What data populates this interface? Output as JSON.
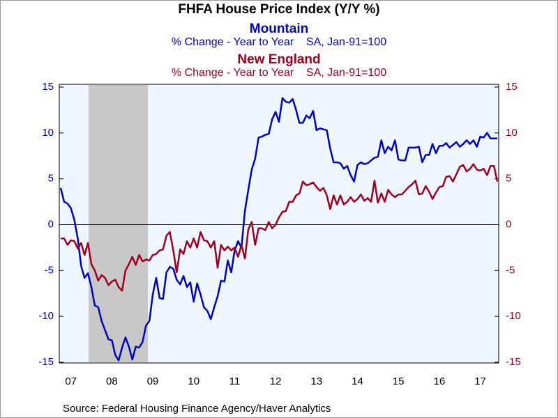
{
  "chart_data": {
    "type": "line",
    "title": "FHFA House Price Index (Y/Y %)",
    "subtitles": [
      {
        "name": "Mountain",
        "text": "% Change - Year to Year    SA, Jan-91=100"
      },
      {
        "name": "New England",
        "text": "% Change - Year to Year    SA, Jan-91=100"
      }
    ],
    "source": "Source:  Federal Housing Finance Agency/Haver Analytics",
    "categories": [
      null,
      null,
      null,
      "07",
      null,
      null,
      null,
      null,
      null,
      null,
      null,
      null,
      null,
      null,
      null,
      "08",
      null,
      null,
      null,
      null,
      null,
      null,
      null,
      null,
      null,
      null,
      null,
      "09",
      null,
      null,
      null,
      null,
      null,
      null,
      null,
      null,
      null,
      null,
      null,
      "10",
      null,
      null,
      null,
      null,
      null,
      null,
      null,
      null,
      null,
      null,
      null,
      "11",
      null,
      null,
      null,
      null,
      null,
      null,
      null,
      null,
      null,
      null,
      null,
      "12",
      null,
      null,
      null,
      null,
      null,
      null,
      null,
      null,
      null,
      null,
      null,
      "13",
      null,
      null,
      null,
      null,
      null,
      null,
      null,
      null,
      null,
      null,
      null,
      "14",
      null,
      null,
      null,
      null,
      null,
      null,
      null,
      null,
      null,
      null,
      null,
      "15",
      null,
      null,
      null,
      null,
      null,
      null,
      null,
      null,
      null,
      null,
      null,
      "16",
      null,
      null,
      null,
      null,
      null,
      null,
      null,
      null,
      null,
      null,
      null,
      "17",
      null,
      null,
      null,
      null,
      null
    ],
    "series": [
      {
        "name": "Mountain",
        "color": "#0000c0",
        "values": [
          4,
          2.5,
          2.3,
          1.8,
          0.5,
          -1.5,
          -4.5,
          -5.8,
          -5.3,
          -6.8,
          -8.8,
          -9,
          -10.5,
          -11.5,
          -12.5,
          -12.6,
          -14.2,
          -14.8,
          -13.4,
          -12.3,
          -13.3,
          -14.7,
          -13.3,
          -13.4,
          -12.8,
          -11,
          -10.5,
          -7.6,
          -5.8,
          -8,
          -8.1,
          -5.2,
          -4.6,
          -4.8,
          -6,
          -6.5,
          -5.6,
          -6.8,
          -6.3,
          -8.4,
          -6.4,
          -7.6,
          -9,
          -9.4,
          -10.3,
          -9,
          -7.8,
          -6.1,
          -6.2,
          -3.9,
          -5.2,
          -2.8,
          -1.8,
          -2.5,
          1.5,
          3.8,
          6,
          7.2,
          9.5,
          9.6,
          9.8,
          9.9,
          11.5,
          12.3,
          11.2,
          13.8,
          13.4,
          13.3,
          13.7,
          12.5,
          11.1,
          11.1,
          11.9,
          11.6,
          12.4,
          10.3,
          10.5,
          10.4,
          10.3,
          8.3,
          6.8,
          6.8,
          6.7,
          6.1,
          6.4,
          5.4,
          4.7,
          6.5,
          6.8,
          6.6,
          6.7,
          7,
          7.3,
          7.4,
          9.2,
          7.8,
          8.5,
          8.1,
          9.2,
          7.1,
          7,
          7,
          8.4,
          8.4,
          8.4,
          8.5,
          6.8,
          7.6,
          7.6,
          8.8,
          7.8,
          8.6,
          8.6,
          8.9,
          8.4,
          8.7,
          9,
          8.5,
          8.8,
          9.2,
          8.8,
          9.2,
          8.5,
          9.6,
          9.5,
          10,
          9.4,
          9.4,
          9.4
        ]
      },
      {
        "name": "New England",
        "color": "#a0001e",
        "axis": "y2",
        "values": [
          -1.5,
          -1.5,
          -2.2,
          -1.7,
          -1.8,
          -2.6,
          -2,
          -3.3,
          -2,
          -4.3,
          -5,
          -6.1,
          -5.5,
          -5.8,
          -6.6,
          -6.2,
          -6,
          -6.8,
          -7.2,
          -5,
          -4.3,
          -3.5,
          -4.4,
          -3.3,
          -4,
          -3.8,
          -3.9,
          -3.3,
          -3.2,
          -2.8,
          -2.7,
          -1.2,
          -0.8,
          -2.8,
          -5.2,
          -2.7,
          -3.2,
          -1.8,
          -2.5,
          -1.5,
          -2.5,
          -0.8,
          -1.7,
          -1.8,
          -2.5,
          -1.8,
          -4.7,
          -2.2,
          -2.8,
          -2.4,
          -2.8,
          -2.5,
          -3.5,
          -2.2,
          -3.7,
          -0.5,
          0.3,
          -2.2,
          -0.4,
          -0.4,
          -0.6,
          0.3,
          -0.4,
          0,
          0.8,
          1.4,
          1.5,
          2.5,
          2.5,
          3.2,
          3.4,
          4.7,
          4.3,
          4.4,
          4.6,
          4.1,
          3.7,
          4,
          3.2,
          1.7,
          3.2,
          2.2,
          3.2,
          2.2,
          2.5,
          3,
          2.5,
          2.8,
          3.3,
          2.6,
          2.9,
          2.5,
          4.8,
          2.4,
          3.4,
          2.5,
          3.8,
          3.3,
          3,
          3.3,
          3.3,
          3.7,
          4.1,
          4.4,
          4.8,
          3.3,
          3.4,
          4.2,
          3.6,
          2.8,
          3.5,
          4.1,
          4.2,
          5.2,
          5.3,
          4.7,
          5.5,
          6.3,
          6.5,
          5.8,
          6.1,
          6.6,
          6,
          5.9,
          6.1,
          5.4,
          6.4,
          6.4,
          4.7
        ]
      }
    ],
    "ylim": [
      -15,
      15
    ],
    "yticks": [
      -15,
      -10,
      -5,
      0,
      5,
      10,
      15
    ],
    "y2lim": [
      -15,
      15
    ],
    "y2ticks": [
      -15,
      -10,
      -5,
      0,
      5,
      10,
      15
    ]
  }
}
